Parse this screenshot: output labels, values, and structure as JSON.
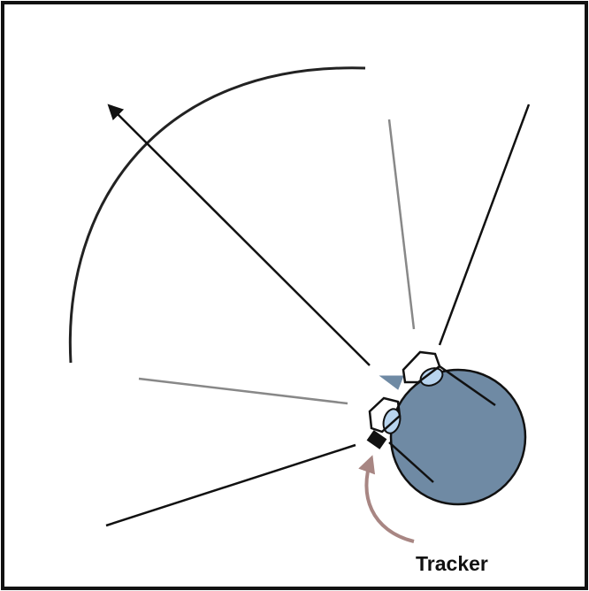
{
  "labels": {
    "tracker": "Tracker"
  }
}
